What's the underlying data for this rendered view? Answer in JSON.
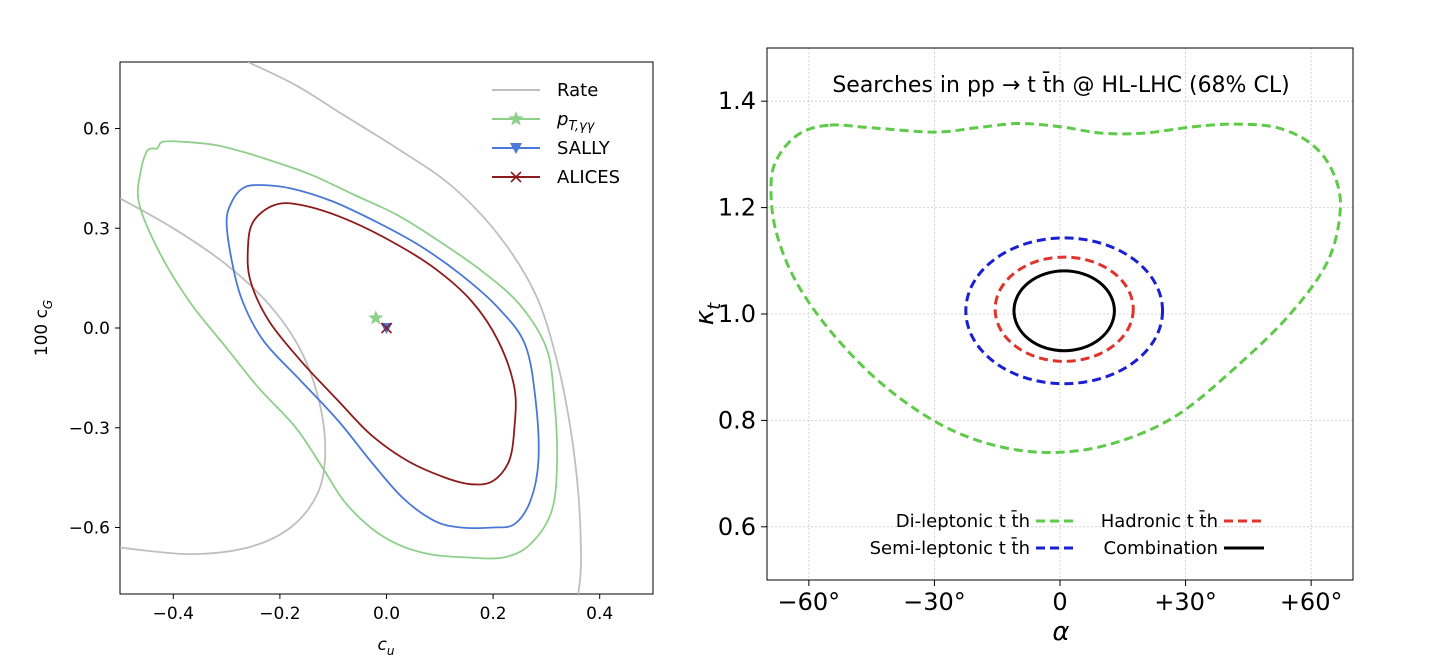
{
  "chart_data": [
    {
      "type": "line",
      "subtype": "contour",
      "xlabel": "c",
      "xlabel_sub": "u",
      "ylabel": "100 c",
      "ylabel_sub": "G",
      "xlim": [
        -0.5,
        0.5
      ],
      "ylim": [
        -0.8,
        0.8
      ],
      "xticks": [
        -0.4,
        -0.2,
        0.0,
        0.2,
        0.4
      ],
      "xtick_labels": [
        "−0.4",
        "−0.2",
        "0.0",
        "0.2",
        "0.4"
      ],
      "yticks": [
        -0.6,
        -0.3,
        0.0,
        0.3,
        0.6
      ],
      "ytick_labels": [
        "−0.6",
        "−0.3",
        "0.0",
        "0.3",
        "0.6"
      ],
      "grid": false,
      "legend_position": "upper-right",
      "series": [
        {
          "name": "Rate",
          "color": "#bfbfbf",
          "marker": "none",
          "contours": [
            [
              [
                -0.5,
                0.39
              ],
              [
                -0.4,
                0.3
              ],
              [
                -0.3,
                0.19
              ],
              [
                -0.22,
                0.07
              ],
              [
                -0.16,
                -0.07
              ],
              [
                -0.125,
                -0.23
              ],
              [
                -0.115,
                -0.38
              ],
              [
                -0.13,
                -0.5
              ],
              [
                -0.18,
                -0.6
              ],
              [
                -0.26,
                -0.66
              ],
              [
                -0.37,
                -0.68
              ],
              [
                -0.5,
                -0.66
              ]
            ],
            [
              [
                -0.26,
                0.8
              ],
              [
                -0.17,
                0.73
              ],
              [
                -0.08,
                0.64
              ],
              [
                0.02,
                0.54
              ],
              [
                0.12,
                0.43
              ],
              [
                0.21,
                0.28
              ],
              [
                0.28,
                0.1
              ],
              [
                0.32,
                -0.1
              ],
              [
                0.345,
                -0.3
              ],
              [
                0.36,
                -0.5
              ],
              [
                0.365,
                -0.7
              ],
              [
                0.36,
                -0.8
              ]
            ]
          ]
        },
        {
          "name": "p_{T,γγ}",
          "label_main": "p",
          "label_sub": "T,γγ",
          "color": "#8ecf8a",
          "marker": "star",
          "best_fit": [
            -0.02,
            0.03
          ],
          "contour": [
            [
              -0.45,
              0.53
            ],
            [
              -0.44,
              0.54
            ],
            [
              -0.43,
              0.54
            ],
            [
              -0.42,
              0.56
            ],
            [
              -0.38,
              0.56
            ],
            [
              -0.32,
              0.55
            ],
            [
              -0.27,
              0.53
            ],
            [
              -0.21,
              0.5
            ],
            [
              -0.14,
              0.46
            ],
            [
              -0.06,
              0.4
            ],
            [
              0.02,
              0.34
            ],
            [
              0.1,
              0.26
            ],
            [
              0.18,
              0.17
            ],
            [
              0.25,
              0.07
            ],
            [
              0.3,
              -0.06
            ],
            [
              0.315,
              -0.22
            ],
            [
              0.32,
              -0.4
            ],
            [
              0.31,
              -0.55
            ],
            [
              0.27,
              -0.65
            ],
            [
              0.22,
              -0.69
            ],
            [
              0.15,
              -0.69
            ],
            [
              0.08,
              -0.68
            ],
            [
              0.02,
              -0.65
            ],
            [
              -0.03,
              -0.6
            ],
            [
              -0.08,
              -0.52
            ],
            [
              -0.12,
              -0.42
            ],
            [
              -0.17,
              -0.3
            ],
            [
              -0.24,
              -0.18
            ],
            [
              -0.3,
              -0.06
            ],
            [
              -0.37,
              0.08
            ],
            [
              -0.43,
              0.24
            ],
            [
              -0.465,
              0.38
            ],
            [
              -0.46,
              0.48
            ],
            [
              -0.45,
              0.53
            ]
          ]
        },
        {
          "name": "SALLY",
          "color": "#4a78d6",
          "marker": "triangle_down",
          "best_fit": [
            0.0,
            0.0
          ],
          "contour": [
            [
              -0.24,
              0.43
            ],
            [
              -0.18,
              0.42
            ],
            [
              -0.1,
              0.38
            ],
            [
              -0.02,
              0.32
            ],
            [
              0.06,
              0.25
            ],
            [
              0.14,
              0.16
            ],
            [
              0.21,
              0.06
            ],
            [
              0.26,
              -0.05
            ],
            [
              0.28,
              -0.22
            ],
            [
              0.285,
              -0.4
            ],
            [
              0.27,
              -0.52
            ],
            [
              0.24,
              -0.59
            ],
            [
              0.2,
              -0.6
            ],
            [
              0.14,
              -0.6
            ],
            [
              0.09,
              -0.58
            ],
            [
              0.03,
              -0.51
            ],
            [
              -0.03,
              -0.4
            ],
            [
              -0.09,
              -0.28
            ],
            [
              -0.16,
              -0.16
            ],
            [
              -0.23,
              -0.04
            ],
            [
              -0.27,
              0.08
            ],
            [
              -0.29,
              0.2
            ],
            [
              -0.3,
              0.32
            ],
            [
              -0.29,
              0.38
            ],
            [
              -0.27,
              0.42
            ],
            [
              -0.24,
              0.43
            ]
          ]
        },
        {
          "name": "ALICES",
          "color": "#8e1b1b",
          "marker": "x",
          "best_fit": [
            0.0,
            0.0
          ],
          "contour": [
            [
              -0.21,
              0.37
            ],
            [
              -0.16,
              0.37
            ],
            [
              -0.08,
              0.33
            ],
            [
              0.01,
              0.26
            ],
            [
              0.09,
              0.18
            ],
            [
              0.16,
              0.08
            ],
            [
              0.21,
              -0.04
            ],
            [
              0.24,
              -0.18
            ],
            [
              0.24,
              -0.3
            ],
            [
              0.23,
              -0.4
            ],
            [
              0.2,
              -0.46
            ],
            [
              0.16,
              -0.47
            ],
            [
              0.11,
              -0.45
            ],
            [
              0.04,
              -0.4
            ],
            [
              -0.03,
              -0.32
            ],
            [
              -0.09,
              -0.22
            ],
            [
              -0.16,
              -0.1
            ],
            [
              -0.22,
              0.02
            ],
            [
              -0.255,
              0.14
            ],
            [
              -0.26,
              0.24
            ],
            [
              -0.25,
              0.32
            ],
            [
              -0.21,
              0.37
            ]
          ]
        }
      ]
    },
    {
      "type": "line",
      "subtype": "contour",
      "title": "Searches in pp → t t̄h @ HL-LHC (68% CL)",
      "xlabel": "α",
      "ylabel": "κ",
      "ylabel_sub": "t",
      "xlim": [
        -70,
        70
      ],
      "ylim": [
        0.5,
        1.5
      ],
      "xticks": [
        -60,
        -30,
        0,
        30,
        60
      ],
      "xtick_labels": [
        "−60°",
        "−30°",
        "0",
        "+30°",
        "+60°"
      ],
      "yticks": [
        0.6,
        0.8,
        1.0,
        1.2,
        1.4
      ],
      "ytick_labels": [
        "0.6",
        "0.8",
        "1.0",
        "1.2",
        "1.4"
      ],
      "grid": true,
      "legend_position": "bottom",
      "series": [
        {
          "name": "Di-leptonic t t̄h",
          "color": "#5fc94a",
          "dash": "dashed",
          "contour": [
            [
              -55,
              1.355
            ],
            [
              -45,
              1.35
            ],
            [
              -30,
              1.342
            ],
            [
              -20,
              1.35
            ],
            [
              -10,
              1.358
            ],
            [
              0,
              1.352
            ],
            [
              10,
              1.34
            ],
            [
              20,
              1.34
            ],
            [
              32,
              1.352
            ],
            [
              42,
              1.357
            ],
            [
              52,
              1.35
            ],
            [
              60,
              1.32
            ],
            [
              65,
              1.27
            ],
            [
              67,
              1.2
            ],
            [
              64,
              1.1
            ],
            [
              55,
              1.0
            ],
            [
              42,
              0.9
            ],
            [
              28,
              0.81
            ],
            [
              14,
              0.76
            ],
            [
              0,
              0.74
            ],
            [
              -14,
              0.75
            ],
            [
              -28,
              0.79
            ],
            [
              -42,
              0.865
            ],
            [
              -54,
              0.96
            ],
            [
              -63,
              1.06
            ],
            [
              -68,
              1.16
            ],
            [
              -69,
              1.25
            ],
            [
              -67,
              1.3
            ],
            [
              -62,
              1.34
            ],
            [
              -55,
              1.355
            ]
          ]
        },
        {
          "name": "Hadronic t t̄h",
          "color": "#e0342b",
          "dash": "dashed",
          "ellipse": {
            "cx": 1,
            "cy": 1.009,
            "rx": 16.5,
            "ry": 0.098
          }
        },
        {
          "name": "Semi-leptonic t t̄h",
          "color": "#1a1fd1",
          "dash": "dashed",
          "ellipse": {
            "cx": 1,
            "cy": 1.006,
            "rx": 23.5,
            "ry": 0.137
          }
        },
        {
          "name": "Combination",
          "color": "#000000",
          "dash": "solid",
          "ellipse": {
            "cx": 1,
            "cy": 1.006,
            "rx": 12,
            "ry": 0.075
          }
        }
      ]
    }
  ]
}
